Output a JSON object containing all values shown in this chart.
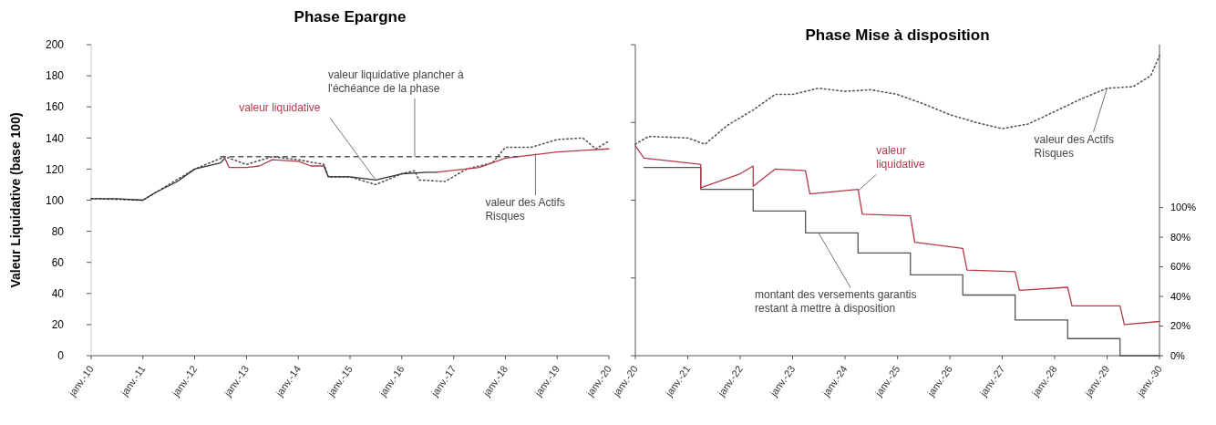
{
  "chart_data": [
    {
      "type": "line",
      "title": "Phase Epargne",
      "ylabel": "Valeur Liquidative (base 100)",
      "xlim": [
        "2010-01",
        "2020-01"
      ],
      "ylim": [
        0,
        200
      ],
      "yticks": [
        0,
        20,
        40,
        60,
        80,
        100,
        120,
        140,
        160,
        180,
        200
      ],
      "xticks": [
        {
          "value": "2010-01",
          "label": "janv.-10"
        },
        {
          "value": "2011-01",
          "label": "janv.-11"
        },
        {
          "value": "2012-01",
          "label": "janv.-12"
        },
        {
          "value": "2013-01",
          "label": "janv.-13"
        },
        {
          "value": "2014-01",
          "label": "janv.-14"
        },
        {
          "value": "2015-01",
          "label": "janv.-15"
        },
        {
          "value": "2016-01",
          "label": "janv.-16"
        },
        {
          "value": "2017-01",
          "label": "janv.-17"
        },
        {
          "value": "2018-01",
          "label": "janv.-18"
        },
        {
          "value": "2019-01",
          "label": "janv.-19"
        },
        {
          "value": "2020-01",
          "label": "janv.-20"
        }
      ],
      "grid": false,
      "series": [
        {
          "color": "#555555",
          "line_style": "dotted",
          "x": [
            "2010-01",
            "2011-01",
            "2012-01",
            "2012-08",
            "2013-01",
            "2013-07",
            "2014-01",
            "2014-07",
            "2014-08",
            "2015-01",
            "2015-07",
            "2016-01",
            "2016-04",
            "2016-05",
            "2016-11",
            "2017-04",
            "2017-10",
            "2018-01",
            "2018-07",
            "2019-01",
            "2019-07",
            "2019-10",
            "2020-01"
          ],
          "values": [
            101,
            100,
            120,
            128,
            123,
            128,
            126,
            123,
            115,
            115,
            110,
            117,
            119,
            113,
            112,
            120,
            124,
            134,
            134,
            139,
            140,
            133,
            138
          ]
        },
        {
          "color": "#333333",
          "line_style": "solid",
          "x": [
            "2010-01",
            "2010-07",
            "2011-01",
            "2011-04",
            "2011-09",
            "2012-01",
            "2012-07",
            "2012-08"
          ],
          "values": [
            101,
            101,
            100,
            105,
            112,
            120,
            124,
            127
          ]
        },
        {
          "color": "#b5394a",
          "line_style": "solid",
          "x": [
            "2012-08",
            "2012-09",
            "2013-01",
            "2013-04",
            "2013-07",
            "2014-01",
            "2014-04",
            "2014-07"
          ],
          "values": [
            127,
            121,
            121,
            122,
            126,
            125,
            122,
            122
          ]
        },
        {
          "color": "#333333",
          "line_style": "solid",
          "x": [
            "2014-07",
            "2014-08",
            "2015-01",
            "2015-07",
            "2016-01",
            "2016-07",
            "2016-09"
          ],
          "values": [
            122,
            115,
            115,
            113,
            117,
            118,
            118
          ]
        },
        {
          "color": "#b5394a",
          "line_style": "solid",
          "x": [
            "2016-09",
            "2017-07",
            "2018-01",
            "2018-07",
            "2019-01",
            "2019-07",
            "2020-01"
          ],
          "values": [
            118,
            121,
            127,
            129,
            131,
            132,
            133
          ]
        },
        {
          "color": "#555555",
          "line_style": "dashed",
          "x": [
            "2012-07",
            "2018-04"
          ],
          "values": [
            128,
            128
          ]
        }
      ],
      "annotations": [
        {
          "text": "valeur liquidative",
          "x": "2015-07",
          "y": 113
        },
        {
          "text": "valeur liquidative plancher à l'échéance de la phase",
          "x": "2016-04",
          "y": 128
        },
        {
          "text": "valeur des Actifs Risques",
          "x": "2018-08",
          "y": 130
        }
      ]
    },
    {
      "type": "line",
      "title": "Phase Mise à disposition",
      "xlim": [
        "2020-01",
        "2030-01"
      ],
      "ylim": [
        0,
        200
      ],
      "y2lim": [
        0,
        210
      ],
      "tick_labels": "x",
      "yticks": [
        {
          "value": 0,
          "label": null
        },
        {
          "value": 50,
          "label": null
        },
        {
          "value": 100,
          "label": null
        },
        {
          "value": 150,
          "label": null
        },
        {
          "value": 200,
          "label": null
        }
      ],
      "y2ticks": [
        {
          "value": 0,
          "label": "0%"
        },
        {
          "value": 20,
          "label": "20%"
        },
        {
          "value": 40,
          "label": "40%"
        },
        {
          "value": 60,
          "label": "60%"
        },
        {
          "value": 80,
          "label": "80%"
        },
        {
          "value": 100,
          "label": "100%"
        }
      ],
      "xticks": [
        {
          "value": "2020-01",
          "label": "janv.-20"
        },
        {
          "value": "2021-01",
          "label": "janv.-21"
        },
        {
          "value": "2022-01",
          "label": "janv.-22"
        },
        {
          "value": "2023-01",
          "label": "janv.-23"
        },
        {
          "value": "2024-01",
          "label": "janv.-24"
        },
        {
          "value": "2025-01",
          "label": "janv.-25"
        },
        {
          "value": "2026-01",
          "label": "janv.-26"
        },
        {
          "value": "2027-01",
          "label": "janv.-27"
        },
        {
          "value": "2028-01",
          "label": "janv.-28"
        },
        {
          "value": "2029-01",
          "label": "janv.-29"
        },
        {
          "value": "2030-01",
          "label": "janv.-30"
        }
      ],
      "grid": false,
      "series": [
        {
          "color": "#555555",
          "line_style": "dotted",
          "x": [
            "2020-01",
            "2020-04",
            "2021-01",
            "2021-05",
            "2021-10",
            "2022-04",
            "2022-09",
            "2023-01",
            "2023-07",
            "2024-01",
            "2024-07",
            "2025-01",
            "2025-07",
            "2026-01",
            "2026-07",
            "2027-01",
            "2027-07",
            "2028-01",
            "2028-07",
            "2029-01",
            "2029-07",
            "2029-11",
            "2030-01"
          ],
          "values": [
            136,
            141,
            140,
            136,
            148,
            158,
            168,
            168,
            172,
            170,
            171,
            168,
            162,
            155,
            150,
            146,
            149,
            157,
            165,
            172,
            173,
            180,
            193
          ]
        },
        {
          "type": "step",
          "color": "#555555",
          "line_style": "solid",
          "x": [
            "2020-03",
            "2021-04",
            "2022-04",
            "2023-04",
            "2024-04",
            "2025-04",
            "2026-04",
            "2027-04",
            "2028-04",
            "2029-04",
            "2030-01"
          ],
          "values": [
            121,
            107,
            93,
            79,
            66,
            52,
            39,
            23,
            11,
            0,
            0
          ]
        },
        {
          "color": "#b5394a",
          "line_style": "solid",
          "x": [
            "2020-01",
            "2020-03",
            "2021-01",
            "2021-04",
            "2021-04",
            "2022-01",
            "2022-04",
            "2022-04",
            "2022-09",
            "2023-04",
            "2023-05",
            "2024-04",
            "2024-05",
            "2025-04",
            "2025-05",
            "2026-04",
            "2026-05",
            "2027-04",
            "2027-05",
            "2028-04",
            "2028-05",
            "2029-04",
            "2029-05",
            "2030-01"
          ],
          "values": [
            135,
            127,
            124,
            123,
            108,
            117,
            122,
            109,
            120,
            119,
            104,
            107,
            91,
            90,
            73,
            69,
            55,
            54,
            42,
            44,
            32,
            32,
            20,
            22
          ]
        }
      ],
      "annotations": [
        {
          "text": "valeur des Actifs Risques",
          "x": "2029-01",
          "y": 172
        },
        {
          "text": "valeur liquidative",
          "x": "2024-04",
          "y": 106
        },
        {
          "text": "montant des versements garantis restant à mettre à disposition",
          "x": "2023-07",
          "y": 79
        }
      ]
    }
  ]
}
